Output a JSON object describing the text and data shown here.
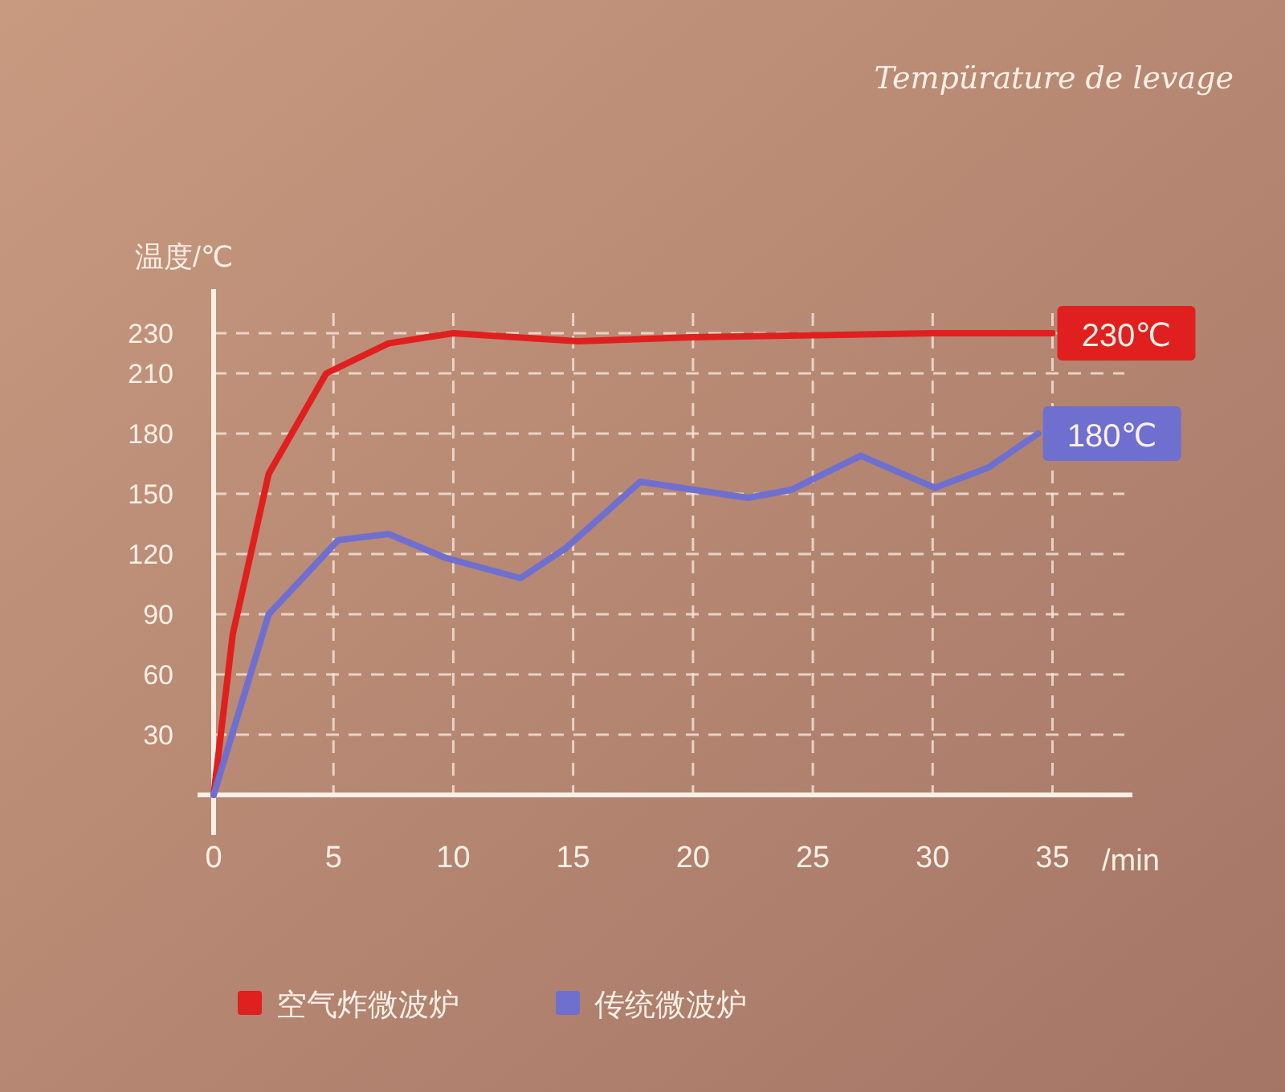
{
  "chart_data": {
    "type": "line",
    "title": "Tempürature de levage",
    "xlabel": "/min",
    "ylabel": "温度/℃",
    "xlim": [
      0,
      38
    ],
    "ylim": [
      0,
      240
    ],
    "xticks": [
      0,
      5,
      10,
      15,
      20,
      25,
      30,
      35
    ],
    "yticks": [
      30,
      60,
      90,
      120,
      150,
      180,
      210,
      230
    ],
    "grid": true,
    "line_style": "solid",
    "marker": "none",
    "legend": "bottom",
    "series": [
      {
        "name": "空气炸微波炉",
        "color": "#e01f1f",
        "x": [
          0,
          0.8,
          2.3,
          4.7,
          7.3,
          10,
          15.2,
          20,
          25,
          30,
          35
        ],
        "values": [
          0,
          80,
          160,
          210,
          225,
          230,
          226,
          228,
          229,
          230,
          230
        ]
      },
      {
        "name": "传统微波炉",
        "color": "#6f6fd0",
        "x": [
          0,
          2.3,
          5.2,
          7.3,
          9.7,
          12.8,
          14.7,
          17.8,
          22.3,
          24.1,
          27,
          30.1,
          32.3,
          34.4
        ],
        "values": [
          0,
          90,
          127,
          130,
          118,
          108,
          123,
          156,
          148,
          152,
          169,
          153,
          163,
          180
        ]
      }
    ],
    "annotations": [
      {
        "text": "230℃",
        "x": 35,
        "y": 230
      },
      {
        "text": "180℃",
        "x": 34.4,
        "y": 180
      }
    ]
  }
}
